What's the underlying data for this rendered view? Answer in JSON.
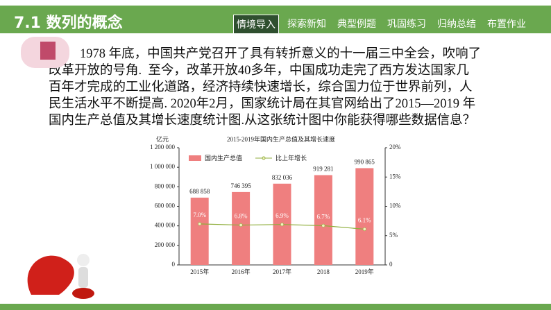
{
  "header": {
    "title": "7.1 数列的概念",
    "nav": [
      "情境导入",
      "探索新知",
      "典型例题",
      "巩固练习",
      "归纳总结",
      "布置作业"
    ]
  },
  "body": {
    "lines": [
      "1978 年底，中国共产党召开了具有转折意义的十一届三中全会，吹响了",
      "改革开放的号角.  至今，改革开放40多年，中国成功走完了西方发达国家几",
      "百年才完成的工业化道路，经济持续快速增长，综合国力位于世界前列，人",
      "民生活水平不断提高. 2020年2月，国家统计局在其官网给出了2015—2019 年",
      "国内生产总值及其增长速度统计图.从这张统计图中你能获得哪些数据信息？"
    ]
  },
  "chart_data": {
    "type": "bar",
    "title": "2015-2019年国内生产总值及其增长速度",
    "y_label": "亿元",
    "categories": [
      "2015年",
      "2016年",
      "2017年",
      "2018",
      "2019年"
    ],
    "series": [
      {
        "name": "国内生产总值",
        "color": "#ef7f7f",
        "values": [
          688858,
          746395,
          832036,
          919281,
          990865
        ],
        "value_labels": [
          "688 858",
          "746 395",
          "832 036",
          "919 281",
          "990 865"
        ]
      },
      {
        "name": "比上年增长",
        "color": "#8fae3c",
        "axis": "y2",
        "values": [
          7.0,
          6.8,
          6.9,
          6.7,
          6.1
        ],
        "value_labels": [
          "7.0%",
          "6.8%",
          "6.9%",
          "6.7%",
          "6.1%"
        ]
      }
    ],
    "ylim": [
      0,
      1200000
    ],
    "yticks": [
      0,
      {
        "value": 200000,
        "label": "200 000"
      },
      {
        "value": 400000,
        "label": "400 000"
      },
      {
        "value": 600000,
        "label": "600 000"
      },
      {
        "value": 800000,
        "label": "800 000"
      },
      {
        "value": 1000000,
        "label": "1 000 000"
      },
      {
        "value": 1200000,
        "label": "1 200 000"
      }
    ],
    "y2lim": [
      0,
      20
    ],
    "y2ticks": [
      0,
      {
        "value": 5,
        "label": "5%"
      },
      {
        "value": 10,
        "label": "10%"
      },
      {
        "value": 15,
        "label": "15%"
      },
      {
        "value": 20,
        "label": "20%"
      }
    ]
  }
}
